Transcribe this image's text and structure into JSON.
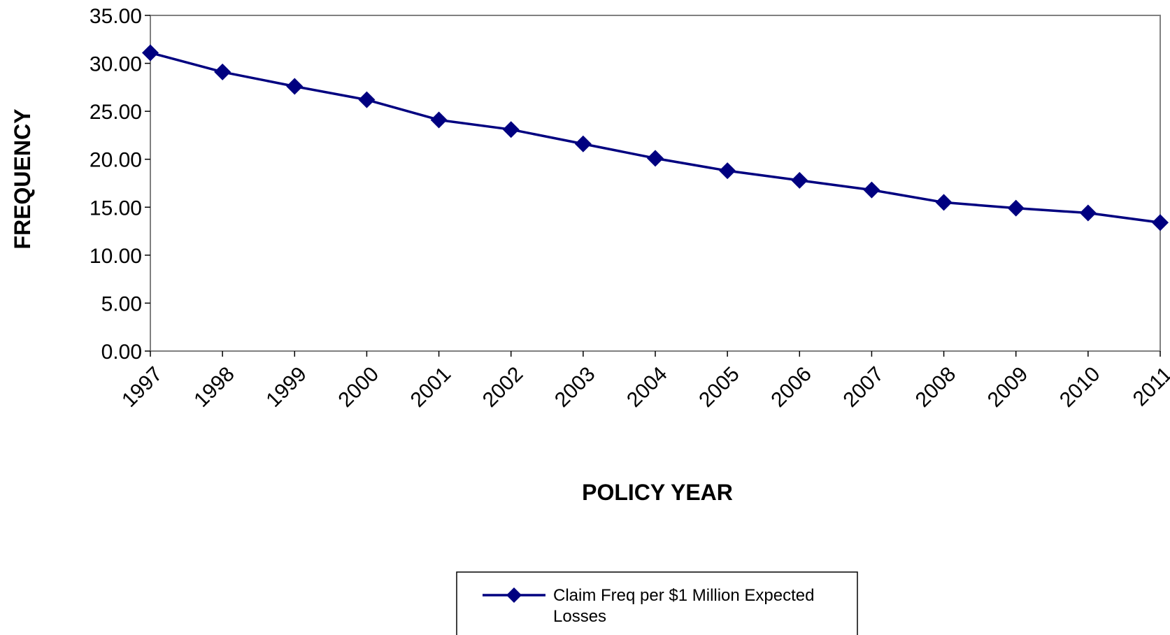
{
  "chart_data": {
    "type": "line",
    "title": "",
    "xlabel": "POLICY YEAR",
    "ylabel": "FREQUENCY",
    "categories": [
      "1997",
      "1998",
      "1999",
      "2000",
      "2001",
      "2002",
      "2003",
      "2004",
      "2005",
      "2006",
      "2007",
      "2008",
      "2009",
      "2010",
      "2011"
    ],
    "series": [
      {
        "name": "Claim Freq per $1 Million Expected Losses",
        "legend_lines": [
          "Claim Freq per $1 Million Expected",
          "Losses"
        ],
        "values": [
          31.1,
          29.1,
          27.6,
          26.2,
          24.1,
          23.1,
          21.6,
          20.1,
          18.8,
          17.8,
          16.8,
          15.5,
          14.9,
          14.4,
          13.4
        ],
        "color": "#000080",
        "marker": "diamond"
      }
    ],
    "ylim": [
      0,
      35
    ],
    "yticks": [
      0,
      5,
      10,
      15,
      20,
      25,
      30,
      35
    ],
    "ytick_labels": [
      "0.00",
      "5.00",
      "10.00",
      "15.00",
      "20.00",
      "25.00",
      "30.00",
      "35.00"
    ],
    "grid": false,
    "legend_position": "bottom-center",
    "frame_color": "#808080"
  }
}
